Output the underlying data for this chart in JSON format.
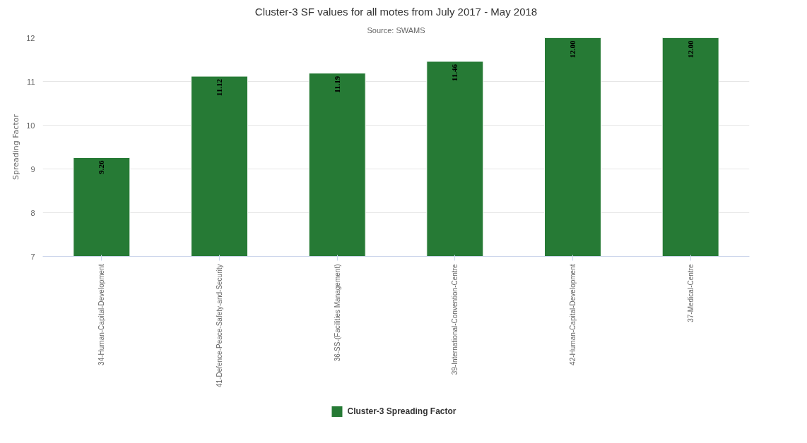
{
  "chart_data": {
    "type": "bar",
    "title": "Cluster-3 SF values for all motes from July 2017 - May 2018",
    "subtitle": "Source: SWAMS",
    "ylabel": "Spreading Factor",
    "categories": [
      "34-Human-Capital-Development",
      "41-Defence-Peace-Safety-and-Security",
      "36-SS-(Facilities Management)",
      "39-International-Convention-Centre",
      "42-Human-Capital-Development",
      "37-Medical-Centre"
    ],
    "series": [
      {
        "name": "Cluster-3 Spreading Factor",
        "color": "#267a35",
        "values": [
          9.26,
          11.12,
          11.19,
          11.46,
          12.0,
          12.0
        ],
        "value_labels": [
          "9.26",
          "11.12",
          "11.19",
          "11.46",
          "12.00",
          "12.00"
        ]
      }
    ],
    "ylim": [
      7,
      12
    ],
    "yticks": [
      7,
      8,
      9,
      10,
      11,
      12
    ],
    "grid": "y",
    "legend": "bottom"
  }
}
